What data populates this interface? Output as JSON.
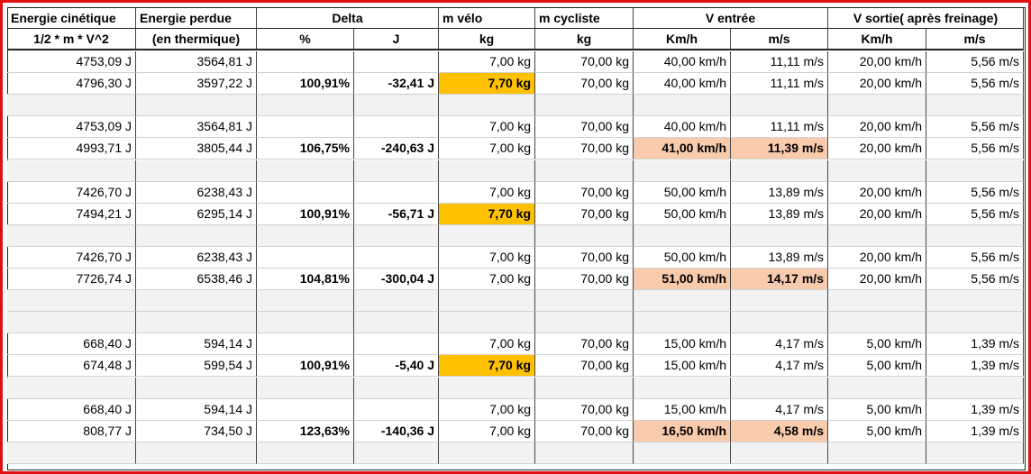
{
  "header": {
    "row1": [
      "Energie cinétique",
      "Energie perdue",
      "Delta",
      "m vélo",
      "m cycliste",
      "V entrée",
      "V sortie( après freinage)"
    ],
    "row2": [
      "1/2 * m * V^2",
      "(en thermique)",
      "%",
      "J",
      "kg",
      "kg",
      "Km/h",
      "m/s",
      "Km/h",
      "m/s"
    ]
  },
  "table": {
    "rows": [
      [
        "4753,09 J",
        "3564,81 J",
        null,
        null,
        "7,00 kg",
        "70,00 kg",
        "40,00 km/h",
        "11,11 m/s",
        "20,00 km/h",
        "5,56 m/s"
      ],
      [
        "4796,30 J",
        "3597,22 J",
        "100,91%",
        "-32,41 J",
        "7,70 kg",
        "70,00 kg",
        "40,00 km/h",
        "11,11 m/s",
        "20,00 km/h",
        "5,56 m/s"
      ],
      null,
      [
        "4753,09 J",
        "3564,81 J",
        null,
        null,
        "7,00 kg",
        "70,00 kg",
        "40,00 km/h",
        "11,11 m/s",
        "20,00 km/h",
        "5,56 m/s"
      ],
      [
        "4993,71 J",
        "3805,44 J",
        "106,75%",
        "-240,63 J",
        "7,00 kg",
        "70,00 kg",
        "41,00 km/h",
        "11,39 m/s",
        "20,00 km/h",
        "5,56 m/s"
      ],
      null,
      [
        "7426,70 J",
        "6238,43 J",
        null,
        null,
        "7,00 kg",
        "70,00 kg",
        "50,00 km/h",
        "13,89 m/s",
        "20,00 km/h",
        "5,56 m/s"
      ],
      [
        "7494,21 J",
        "6295,14 J",
        "100,91%",
        "-56,71 J",
        "7,70 kg",
        "70,00 kg",
        "50,00 km/h",
        "13,89 m/s",
        "20,00 km/h",
        "5,56 m/s"
      ],
      null,
      [
        "7426,70 J",
        "6238,43 J",
        null,
        null,
        "7,00 kg",
        "70,00 kg",
        "50,00 km/h",
        "13,89 m/s",
        "20,00 km/h",
        "5,56 m/s"
      ],
      [
        "7726,74 J",
        "6538,46 J",
        "104,81%",
        "-300,04 J",
        "7,00 kg",
        "70,00 kg",
        "51,00 km/h",
        "14,17 m/s",
        "20,00 km/h",
        "5,56 m/s"
      ],
      null,
      null,
      [
        "668,40 J",
        "594,14 J",
        null,
        null,
        "7,00 kg",
        "70,00 kg",
        "15,00 km/h",
        "4,17 m/s",
        "5,00 km/h",
        "1,39 m/s"
      ],
      [
        "674,48 J",
        "599,54 J",
        "100,91%",
        "-5,40 J",
        "7,70 kg",
        "70,00 kg",
        "15,00 km/h",
        "4,17 m/s",
        "5,00 km/h",
        "1,39 m/s"
      ],
      null,
      [
        "668,40 J",
        "594,14 J",
        null,
        null,
        "7,00 kg",
        "70,00 kg",
        "15,00 km/h",
        "4,17 m/s",
        "5,00 km/h",
        "1,39 m/s"
      ],
      [
        "808,77 J",
        "734,50 J",
        "123,63%",
        "-140,36 J",
        "7,00 kg",
        "70,00 kg",
        "16,50 km/h",
        "4,58 m/s",
        "5,00 km/h",
        "1,39 m/s"
      ],
      null
    ]
  }
}
